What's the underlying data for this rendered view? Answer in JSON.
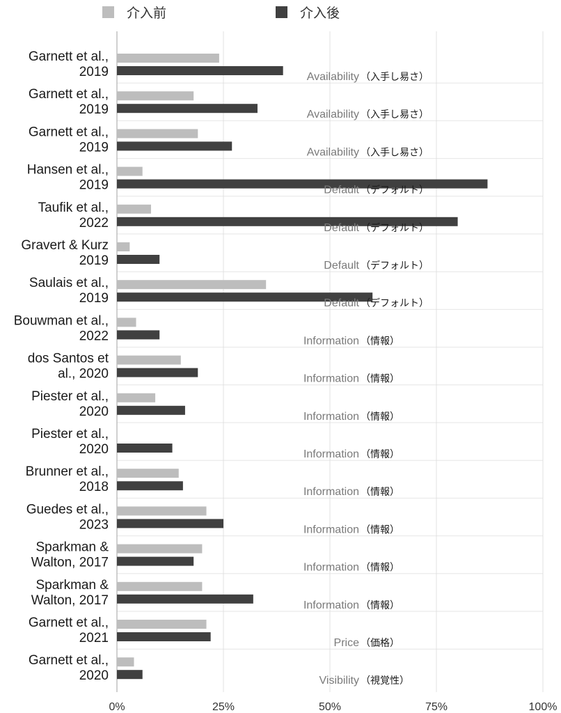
{
  "chart_data": {
    "type": "bar",
    "orientation": "horizontal",
    "legend_position": "top",
    "grid": true,
    "xlim": [
      0,
      100
    ],
    "x_tick_labels": [
      "0%",
      "25%",
      "50%",
      "75%",
      "100%"
    ],
    "series": [
      {
        "name": "介入前",
        "color": "#bdbdbd"
      },
      {
        "name": "介入後",
        "color": "#404040"
      }
    ],
    "rows": [
      {
        "study": [
          "Garnett et al.,",
          "2019"
        ],
        "before": 24,
        "after": 39,
        "category": "Availability",
        "category_jp": "（入手し易さ）"
      },
      {
        "study": [
          "Garnett et al.,",
          "2019"
        ],
        "before": 18,
        "after": 33,
        "category": "Availability",
        "category_jp": "（入手し易さ）"
      },
      {
        "study": [
          "Garnett et al.,",
          "2019"
        ],
        "before": 19,
        "after": 27,
        "category": "Availability",
        "category_jp": "（入手し易さ）"
      },
      {
        "study": [
          "Hansen et al.,",
          "2019"
        ],
        "before": 6,
        "after": 87,
        "category": "Default",
        "category_jp": "（デフォルト）"
      },
      {
        "study": [
          "Taufik et al.,",
          "2022"
        ],
        "before": 8,
        "after": 80,
        "category": "Default",
        "category_jp": "（デフォルト）"
      },
      {
        "study": [
          "Gravert & Kurz",
          "2019"
        ],
        "before": 3,
        "after": 10,
        "category": "Default",
        "category_jp": "（デフォルト）"
      },
      {
        "study": [
          "Saulais et al.,",
          "2019"
        ],
        "before": 35,
        "after": 60,
        "category": "Default",
        "category_jp": "（デフォルト）"
      },
      {
        "study": [
          "Bouwman et al.,",
          "2022"
        ],
        "before": 4.5,
        "after": 10,
        "category": "Information",
        "category_jp": "（情報）"
      },
      {
        "study": [
          "dos Santos et",
          "al., 2020"
        ],
        "before": 15,
        "after": 19,
        "category": "Information",
        "category_jp": "（情報）"
      },
      {
        "study": [
          "Piester et al.,",
          "2020"
        ],
        "before": 9,
        "after": 16,
        "category": "Information",
        "category_jp": "（情報）"
      },
      {
        "study": [
          "Piester et al.,",
          "2020"
        ],
        "before": 0,
        "after": 13,
        "category": "Information",
        "category_jp": "（情報）"
      },
      {
        "study": [
          "Brunner et al.,",
          "2018"
        ],
        "before": 14.5,
        "after": 15.5,
        "category": "Information",
        "category_jp": "（情報）"
      },
      {
        "study": [
          "Guedes et al.,",
          "2023"
        ],
        "before": 21,
        "after": 25,
        "category": "Information",
        "category_jp": "（情報）"
      },
      {
        "study": [
          "Sparkman &",
          "Walton, 2017"
        ],
        "before": 20,
        "after": 18,
        "category": "Information",
        "category_jp": "（情報）"
      },
      {
        "study": [
          "Sparkman &",
          "Walton, 2017"
        ],
        "before": 20,
        "after": 32,
        "category": "Information",
        "category_jp": "（情報）"
      },
      {
        "study": [
          "Garnett et al.,",
          "2021"
        ],
        "before": 21,
        "after": 22,
        "category": "Price",
        "category_jp": "（価格）"
      },
      {
        "study": [
          "Garnett et al.,",
          "2020"
        ],
        "before": 4,
        "after": 6,
        "category": "Visibility",
        "category_jp": "（視覚性）"
      }
    ]
  }
}
